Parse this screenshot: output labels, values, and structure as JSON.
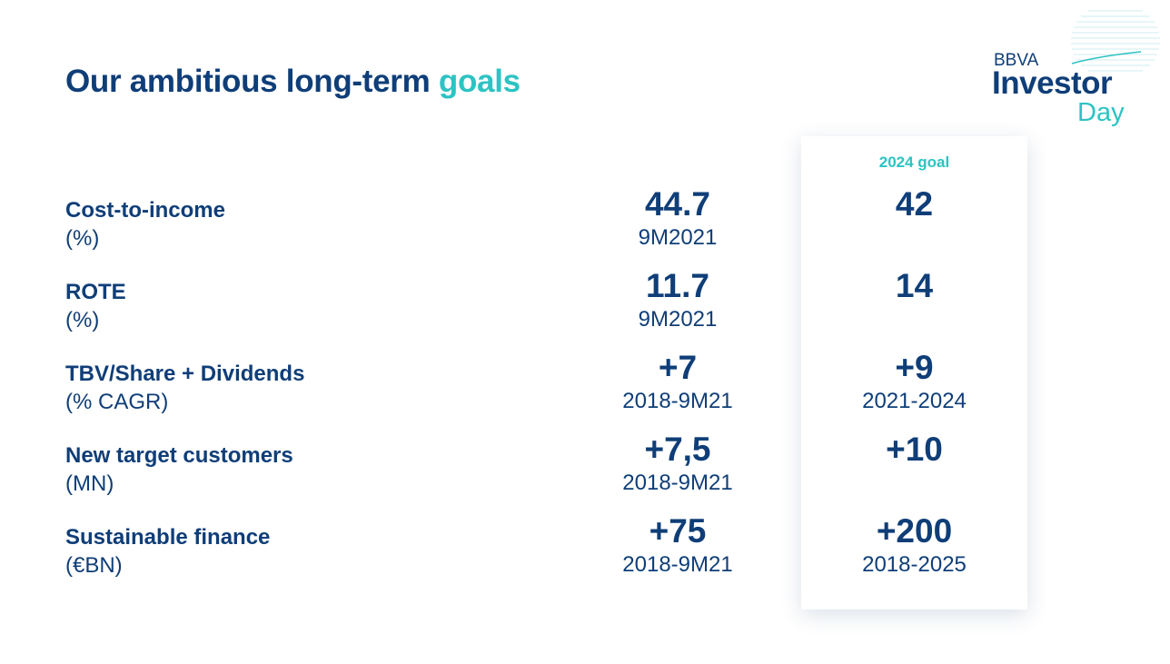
{
  "header": {
    "title_main": "Our ambitious long-term",
    "title_accent": "goals"
  },
  "logo": {
    "bbva": "BBVA",
    "investor": "Investor",
    "day": "Day"
  },
  "goal_column_header": "2024 goal",
  "metrics": [
    {
      "name": "Cost-to-income",
      "unit": "(%)",
      "current_value": "44.7",
      "current_period": "9M2021",
      "goal_value": "42",
      "goal_period": ""
    },
    {
      "name": "ROTE",
      "unit": "(%)",
      "current_value": "11.7",
      "current_period": "9M2021",
      "goal_value": "14",
      "goal_period": ""
    },
    {
      "name": "TBV/Share + Dividends",
      "unit": "(% CAGR)",
      "current_value": "+7",
      "current_period": "2018-9M21",
      "goal_value": "+9",
      "goal_period": "2021-2024"
    },
    {
      "name": "New target customers",
      "unit": "(MN)",
      "current_value": "+7,5",
      "current_period": "2018-9M21",
      "goal_value": "+10",
      "goal_period": ""
    },
    {
      "name": "Sustainable finance",
      "unit": "(€BN)",
      "current_value": "+75",
      "current_period": "2018-9M21",
      "goal_value": "+200",
      "goal_period": "2018-2025"
    }
  ],
  "colors": {
    "navy": "#0f3e78",
    "teal": "#2dc3c3"
  }
}
